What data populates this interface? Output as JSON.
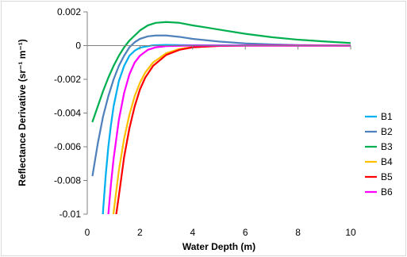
{
  "chart_data": {
    "type": "line",
    "title": "",
    "xlabel": "Water Depth (m)",
    "ylabel": "Reflectance Derivative (sr⁻¹ m⁻¹)",
    "xlim": [
      0,
      10
    ],
    "ylim": [
      -0.01,
      0.002
    ],
    "x_ticks": [
      0,
      2,
      4,
      6,
      8,
      10
    ],
    "y_ticks": [
      0.002,
      0,
      -0.002,
      -0.004,
      -0.006,
      -0.008,
      -0.01
    ],
    "x_tick_labels": [
      "0",
      "2",
      "4",
      "6",
      "8",
      "10"
    ],
    "y_tick_labels": [
      "0.002",
      "0",
      "-0.002",
      "-0.004",
      "-0.006",
      "-0.008",
      "-0.01"
    ],
    "grid": false,
    "legend_position": "right",
    "series": [
      {
        "name": "B1",
        "color": "#00b0f0",
        "x": [
          0.5,
          0.6,
          0.7,
          0.8,
          0.9,
          1.0,
          1.2,
          1.4,
          1.6,
          1.8,
          2.0,
          2.5,
          3.0,
          3.5,
          4.0,
          5.0,
          6.0,
          8.0,
          10.0
        ],
        "y": [
          -0.0125,
          -0.0098,
          -0.0077,
          -0.006,
          -0.0047,
          -0.0036,
          -0.0021,
          -0.0012,
          -0.0006,
          -0.0003,
          -0.00012,
          2e-05,
          4e-05,
          3e-05,
          2e-05,
          1e-05,
          1e-05,
          0.0,
          0.0
        ]
      },
      {
        "name": "B2",
        "color": "#4f81bd",
        "x": [
          0.2,
          0.4,
          0.6,
          0.8,
          1.0,
          1.2,
          1.4,
          1.6,
          1.8,
          2.0,
          2.3,
          2.6,
          3.0,
          3.5,
          4.0,
          5.0,
          6.0,
          7.0,
          8.0,
          9.0,
          10.0
        ],
        "y": [
          -0.0077,
          -0.0058,
          -0.0042,
          -0.003,
          -0.002,
          -0.0012,
          -0.0006,
          -0.0001,
          0.0002,
          0.0004,
          0.00055,
          0.0006,
          0.0006,
          0.00052,
          0.0004,
          0.00024,
          0.00013,
          7e-05,
          3e-05,
          1e-05,
          0.0
        ]
      },
      {
        "name": "B3",
        "color": "#00b050",
        "x": [
          0.2,
          0.4,
          0.6,
          0.8,
          1.0,
          1.2,
          1.4,
          1.6,
          1.8,
          2.0,
          2.3,
          2.6,
          3.0,
          3.5,
          4.0,
          4.5,
          5.0,
          6.0,
          7.0,
          8.0,
          9.0,
          10.0
        ],
        "y": [
          -0.0045,
          -0.0036,
          -0.0027,
          -0.0019,
          -0.0012,
          -0.0006,
          -0.0001,
          0.0003,
          0.0006,
          0.0009,
          0.0012,
          0.00135,
          0.0014,
          0.00135,
          0.0012,
          0.00108,
          0.00095,
          0.0007,
          0.0005,
          0.00035,
          0.00025,
          0.00015
        ]
      },
      {
        "name": "B4",
        "color": "#ffc000",
        "x": [
          0.9,
          1.0,
          1.2,
          1.4,
          1.6,
          1.8,
          2.0,
          2.2,
          2.5,
          3.0,
          3.5,
          4.0,
          5.0,
          6.0,
          8.0,
          10.0
        ],
        "y": [
          -0.0115,
          -0.0099,
          -0.0074,
          -0.0055,
          -0.0041,
          -0.003,
          -0.0022,
          -0.0016,
          -0.001,
          -0.00045,
          -0.0002,
          -9e-05,
          -2e-05,
          0.0,
          0.0,
          0.0
        ]
      },
      {
        "name": "B5",
        "color": "#ff0000",
        "x": [
          1.0,
          1.1,
          1.2,
          1.4,
          1.6,
          1.8,
          2.0,
          2.2,
          2.5,
          3.0,
          3.5,
          4.0,
          5.0,
          6.0,
          8.0,
          10.0
        ],
        "y": [
          -0.0115,
          -0.01,
          -0.0089,
          -0.0066,
          -0.0049,
          -0.0036,
          -0.0026,
          -0.0019,
          -0.0012,
          -0.00055,
          -0.00025,
          -0.0001,
          -2e-05,
          0.0,
          0.0,
          0.0
        ]
      },
      {
        "name": "B6",
        "color": "#ff00ff",
        "x": [
          0.7,
          0.8,
          0.9,
          1.0,
          1.2,
          1.4,
          1.6,
          1.8,
          2.0,
          2.3,
          2.6,
          3.0,
          3.5,
          4.0,
          5.0,
          6.0,
          8.0,
          10.0
        ],
        "y": [
          -0.012,
          -0.01,
          -0.0082,
          -0.0067,
          -0.0044,
          -0.0028,
          -0.0017,
          -0.001,
          -0.0006,
          -0.00025,
          -0.0001,
          -3e-05,
          -1e-05,
          0.0,
          0.0,
          0.0,
          0.0,
          0.0
        ]
      }
    ]
  }
}
